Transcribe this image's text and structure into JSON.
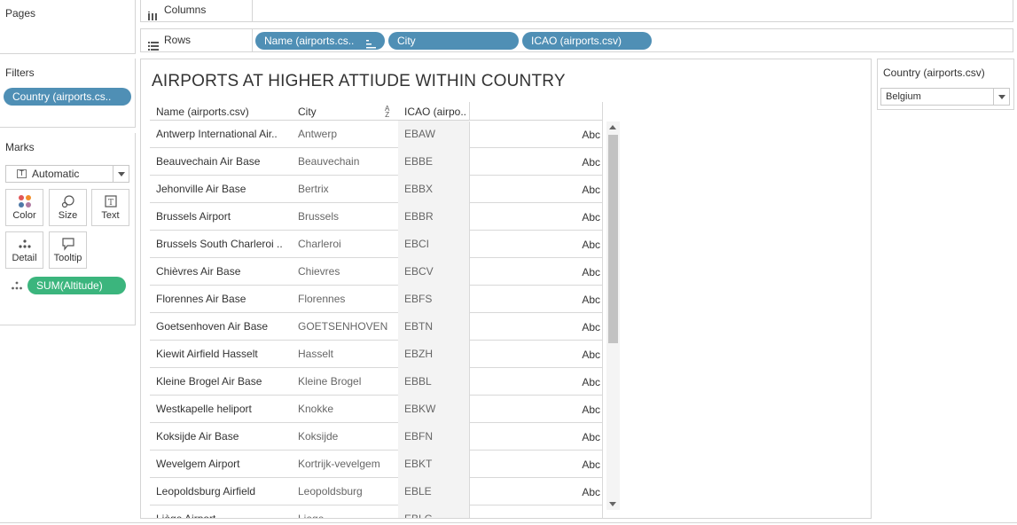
{
  "pages": {
    "title": "Pages"
  },
  "filters": {
    "title": "Filters",
    "pill": "Country (airports.cs.."
  },
  "marks": {
    "title": "Marks",
    "type_select": "Automatic",
    "buttons": [
      {
        "label": "Color",
        "icon": "color-dots-icon"
      },
      {
        "label": "Size",
        "icon": "size-icon"
      },
      {
        "label": "Text",
        "icon": "text-box-icon"
      },
      {
        "label": "Detail",
        "icon": "detail-dots-icon"
      },
      {
        "label": "Tooltip",
        "icon": "tooltip-bubble-icon"
      }
    ],
    "measure_pill": "SUM(Altitude)"
  },
  "shelves": {
    "columns_label": "Columns",
    "rows_label": "Rows",
    "row_pills": [
      "Name (airports.cs..",
      "City",
      "ICAO (airports.csv)"
    ]
  },
  "sheet": {
    "title": "AIRPORTS AT HIGHER ATTIUDE WITHIN COUNTRY",
    "headers": {
      "name": "Name (airports.csv)",
      "city": "City",
      "icao": "ICAO (airpo.."
    },
    "rows": [
      {
        "name": "Antwerp International Air..",
        "city": "Antwerp",
        "icao": "EBAW",
        "value": "Abc"
      },
      {
        "name": "Beauvechain Air Base",
        "city": "Beauvechain",
        "icao": "EBBE",
        "value": "Abc"
      },
      {
        "name": "Jehonville Air Base",
        "city": "Bertrix",
        "icao": "EBBX",
        "value": "Abc"
      },
      {
        "name": "Brussels Airport",
        "city": "Brussels",
        "icao": "EBBR",
        "value": "Abc"
      },
      {
        "name": "Brussels South Charleroi ..",
        "city": "Charleroi",
        "icao": "EBCI",
        "value": "Abc"
      },
      {
        "name": "Chièvres Air Base",
        "city": "Chievres",
        "icao": "EBCV",
        "value": "Abc"
      },
      {
        "name": "Florennes Air Base",
        "city": "Florennes",
        "icao": "EBFS",
        "value": "Abc"
      },
      {
        "name": "Goetsenhoven Air Base",
        "city": "GOETSENHOVEN",
        "icao": "EBTN",
        "value": "Abc"
      },
      {
        "name": "Kiewit Airfield Hasselt",
        "city": "Hasselt",
        "icao": "EBZH",
        "value": "Abc"
      },
      {
        "name": "Kleine Brogel Air Base",
        "city": "Kleine Brogel",
        "icao": "EBBL",
        "value": "Abc"
      },
      {
        "name": "Westkapelle heliport",
        "city": "Knokke",
        "icao": "EBKW",
        "value": "Abc"
      },
      {
        "name": "Koksijde Air Base",
        "city": "Koksijde",
        "icao": "EBFN",
        "value": "Abc"
      },
      {
        "name": "Wevelgem Airport",
        "city": "Kortrijk-vevelgem",
        "icao": "EBKT",
        "value": "Abc"
      },
      {
        "name": "Leopoldsburg Airfield",
        "city": "Leopoldsburg",
        "icao": "EBLE",
        "value": "Abc"
      },
      {
        "name": "Liège Airport",
        "city": "Liege",
        "icao": "EBLG",
        "value": ""
      }
    ]
  },
  "country_filter": {
    "title": "Country (airports.csv)",
    "selected": "Belgium"
  },
  "colors": {
    "pill_blue": "#4f8fb5",
    "pill_green": "#3bb57d",
    "border": "#d4d4d4"
  }
}
